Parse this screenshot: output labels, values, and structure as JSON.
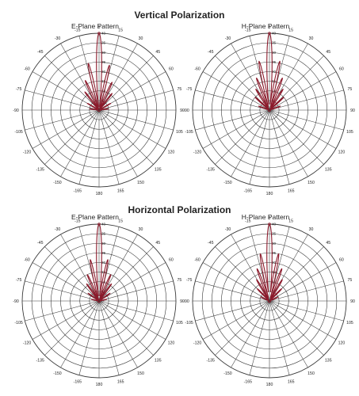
{
  "sections": [
    {
      "title": "Vertical Polarization"
    },
    {
      "title": "Horizontal Polarization"
    }
  ],
  "chart_data": [
    {
      "type": "polar-line",
      "title": "E-Plane Pattern",
      "angle_ticks": [
        0,
        15,
        30,
        45,
        60,
        75,
        90,
        105,
        120,
        135,
        150,
        165,
        180,
        -165,
        -150,
        -135,
        -120,
        -105,
        -90,
        -75,
        -60,
        -45,
        -30,
        -15
      ],
      "radial_ticks": [
        0,
        5,
        10,
        15,
        20,
        25,
        30,
        35,
        40
      ],
      "radial_range": [
        0,
        40
      ],
      "series_color": "#8b1a2b",
      "lobes": [
        {
          "angle": 0,
          "r": 40
        },
        {
          "angle": -13,
          "r": 25
        },
        {
          "angle": 13,
          "r": 24
        },
        {
          "angle": -25,
          "r": 17
        },
        {
          "angle": 25,
          "r": 16
        },
        {
          "angle": -38,
          "r": 12
        },
        {
          "angle": 38,
          "r": 11
        },
        {
          "angle": -60,
          "r": 7
        },
        {
          "angle": 60,
          "r": 7
        },
        {
          "angle": -82,
          "r": 5
        },
        {
          "angle": 82,
          "r": 5
        }
      ]
    },
    {
      "type": "polar-line",
      "title": "H-Plane Pattern",
      "angle_ticks": [
        0,
        15,
        30,
        45,
        60,
        75,
        90,
        105,
        120,
        135,
        150,
        165,
        180,
        -165,
        -150,
        -135,
        -120,
        -105,
        -90,
        -75,
        -60,
        -45,
        -30,
        -15
      ],
      "radial_ticks": [
        0,
        5,
        10,
        15,
        20,
        25,
        30,
        35,
        40
      ],
      "radial_range": [
        0,
        40
      ],
      "series_color": "#8b1a2b",
      "lobes": [
        {
          "angle": 0,
          "r": 40
        },
        {
          "angle": -12,
          "r": 26
        },
        {
          "angle": 12,
          "r": 26
        },
        {
          "angle": -22,
          "r": 18
        },
        {
          "angle": 22,
          "r": 18
        },
        {
          "angle": -33,
          "r": 13
        },
        {
          "angle": 33,
          "r": 13
        },
        {
          "angle": -48,
          "r": 10
        },
        {
          "angle": 48,
          "r": 10
        },
        {
          "angle": -70,
          "r": 6
        },
        {
          "angle": 70,
          "r": 6
        }
      ]
    },
    {
      "type": "polar-line",
      "title": "E-Plane Pattern",
      "angle_ticks": [
        0,
        15,
        30,
        45,
        60,
        75,
        90,
        105,
        120,
        135,
        150,
        165,
        180,
        -165,
        -150,
        -135,
        -120,
        -105,
        -90,
        -75,
        -60,
        -45,
        -30,
        -15
      ],
      "radial_ticks": [
        0,
        5,
        10,
        15,
        20,
        25,
        30,
        35,
        40
      ],
      "radial_range": [
        0,
        40
      ],
      "series_color": "#8b1a2b",
      "lobes": [
        {
          "angle": 0,
          "r": 40
        },
        {
          "angle": -12,
          "r": 22
        },
        {
          "angle": 12,
          "r": 22
        },
        {
          "angle": -24,
          "r": 15
        },
        {
          "angle": 24,
          "r": 15
        },
        {
          "angle": -36,
          "r": 11
        },
        {
          "angle": 36,
          "r": 11
        },
        {
          "angle": -55,
          "r": 7
        },
        {
          "angle": 55,
          "r": 7
        },
        {
          "angle": -78,
          "r": 4
        },
        {
          "angle": 78,
          "r": 4
        }
      ]
    },
    {
      "type": "polar-line",
      "title": "H-Plane Pattern",
      "angle_ticks": [
        0,
        15,
        30,
        45,
        60,
        75,
        90,
        105,
        120,
        135,
        150,
        165,
        180,
        -165,
        -150,
        -135,
        -120,
        -105,
        -90,
        -75,
        -60,
        -45,
        -30,
        -15
      ],
      "radial_ticks": [
        0,
        5,
        10,
        15,
        20,
        25,
        30,
        35,
        40
      ],
      "radial_range": [
        0,
        40
      ],
      "series_color": "#8b1a2b",
      "lobes": [
        {
          "angle": 0,
          "r": 40
        },
        {
          "angle": -11,
          "r": 25
        },
        {
          "angle": 11,
          "r": 25
        },
        {
          "angle": -21,
          "r": 18
        },
        {
          "angle": 21,
          "r": 18
        },
        {
          "angle": -31,
          "r": 13
        },
        {
          "angle": 31,
          "r": 13
        },
        {
          "angle": -45,
          "r": 9
        },
        {
          "angle": 45,
          "r": 9
        },
        {
          "angle": -65,
          "r": 5
        },
        {
          "angle": 65,
          "r": 5
        }
      ]
    }
  ]
}
